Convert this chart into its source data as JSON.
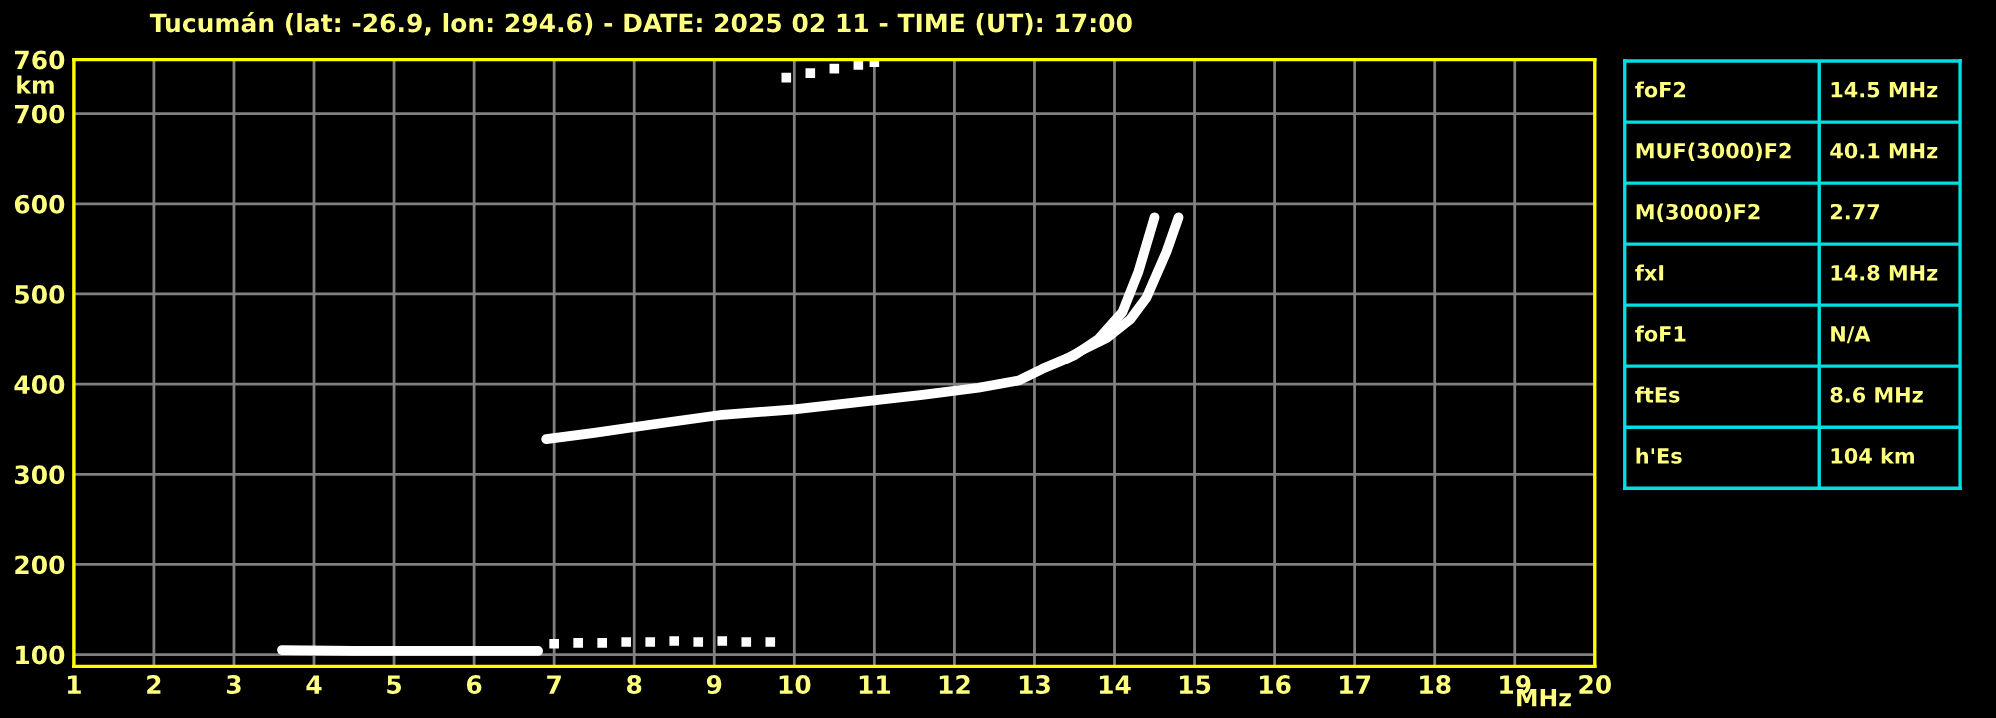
{
  "chart_data": [
    {
      "type": "line",
      "title": "Tucumán (lat: -26.9, lon: 294.6) - DATE: 2025 02 11 - TIME (UT): 17:00",
      "xlabel": "MHz",
      "ylabel": "km",
      "xlim": [
        1,
        20
      ],
      "xticks": [
        1,
        2,
        3,
        4,
        5,
        6,
        7,
        8,
        9,
        10,
        11,
        12,
        13,
        14,
        15,
        16,
        17,
        18,
        19,
        20
      ],
      "ylim": [
        87,
        760
      ],
      "yticks": [
        100,
        200,
        300,
        400,
        500,
        600,
        700,
        760
      ],
      "grid": true,
      "legend": false,
      "series": [
        {
          "type": "line",
          "color": "#ffffff",
          "x": [
            6.9,
            7.5,
            8.2,
            9.1,
            10.0,
            10.8,
            11.6,
            12.3,
            12.8,
            13.1,
            13.5,
            13.8,
            14.1,
            14.3,
            14.4,
            14.5
          ],
          "values": [
            339,
            346,
            355,
            366,
            372,
            380,
            388,
            396,
            404,
            417,
            432,
            450,
            480,
            525,
            555,
            585
          ]
        },
        {
          "type": "line",
          "color": "#ffffff",
          "x": [
            13.4,
            13.6,
            13.9,
            14.2,
            14.4,
            14.65,
            14.8
          ],
          "values": [
            428,
            438,
            451,
            472,
            496,
            547,
            585
          ]
        },
        {
          "type": "line",
          "color": "#ffffff",
          "x": [
            3.6,
            4.5,
            5.5,
            6.8
          ],
          "values": [
            105,
            104,
            104,
            104
          ]
        },
        {
          "type": "scatter",
          "color": "#ffffff",
          "marker": "square",
          "x": [
            7.0,
            7.3,
            7.6,
            7.9,
            8.2,
            8.5,
            8.8,
            9.1,
            9.4,
            9.7,
            9.9,
            10.2,
            10.5,
            10.8,
            11.0
          ],
          "values": [
            112,
            113,
            113,
            114,
            114,
            115,
            114,
            115,
            114,
            114,
            740,
            745,
            750,
            754,
            757
          ]
        }
      ]
    },
    {
      "type": "other",
      "annotations": [
        "foF2",
        "14.5 MHz",
        "MUF(3000)F2",
        "40.1 MHz",
        "M(3000)F2",
        "2.77",
        "fxI",
        "14.8 MHz",
        "foF1",
        "N/A",
        "ftEs",
        "8.6 MHz",
        "h'Es",
        "104 km"
      ]
    }
  ]
}
